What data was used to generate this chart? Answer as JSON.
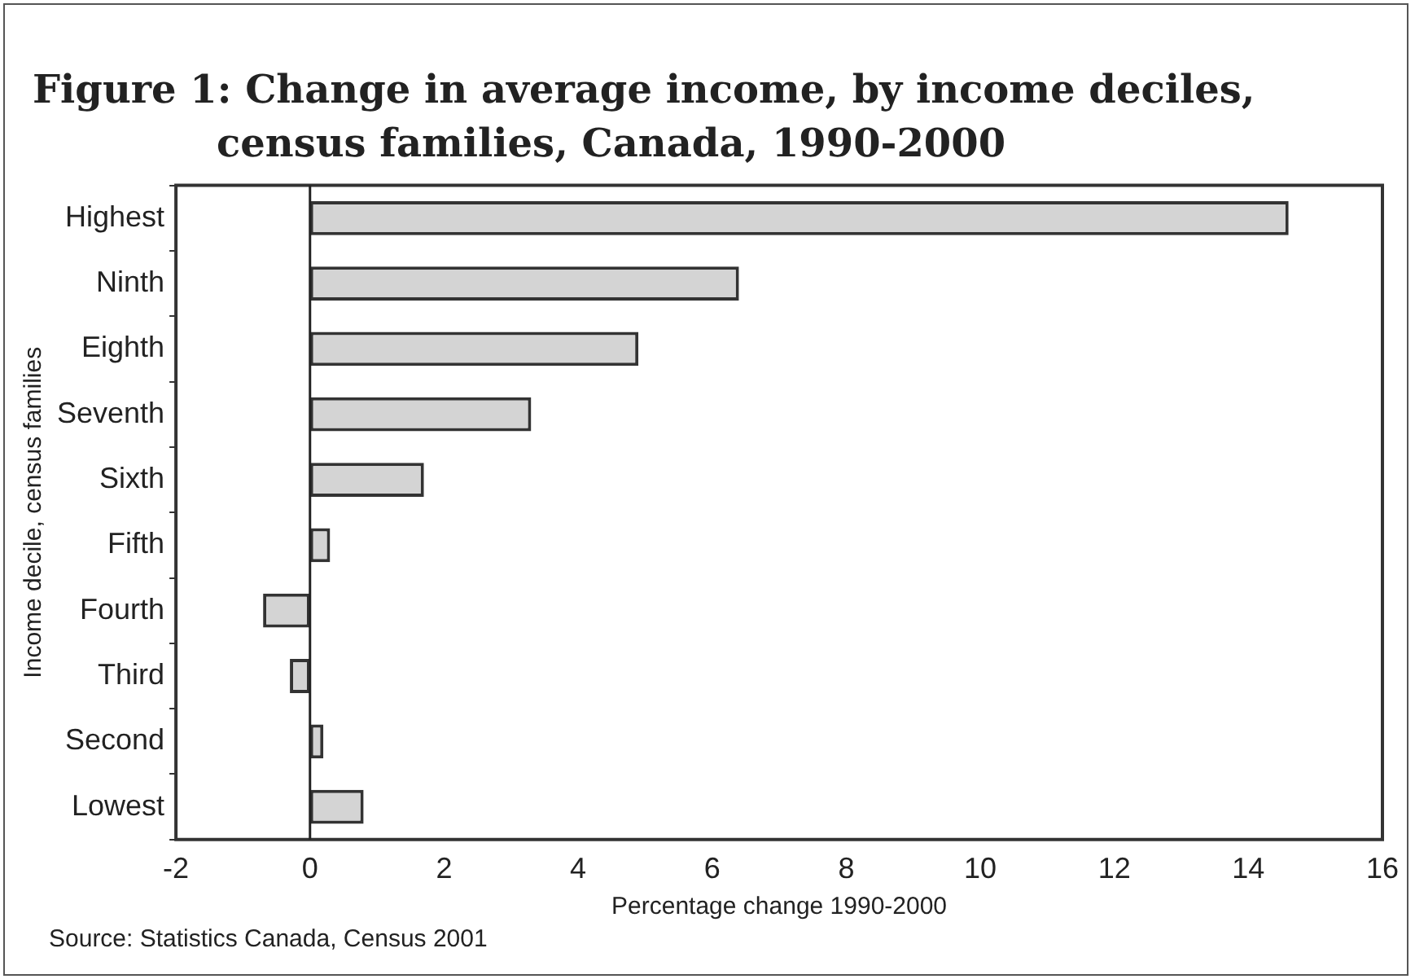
{
  "chart_data": {
    "type": "bar",
    "orientation": "horizontal",
    "title": "Figure 1: Change in average income, by income deciles, census families, Canada, 1990-2000",
    "categories": [
      "Highest",
      "Ninth",
      "Eighth",
      "Seventh",
      "Sixth",
      "Fifth",
      "Fourth",
      "Third",
      "Second",
      "Lowest"
    ],
    "values": [
      14.6,
      6.4,
      4.9,
      3.3,
      1.7,
      0.3,
      -0.7,
      -0.3,
      0.2,
      0.8
    ],
    "color": "#d4d4d4",
    "xlim": [
      -2,
      16
    ],
    "xticks": [
      -2,
      0,
      2,
      4,
      6,
      8,
      10,
      12,
      14,
      16
    ],
    "xlabel": "Percentage change 1990-2000",
    "ylabel": "Income decile, census families",
    "ref_lines": [
      {
        "axis": "x",
        "value": 0,
        "color": "#222222"
      }
    ],
    "grid": false,
    "legend": false,
    "annotations": [
      "Source: Statistics Canada, Census 2001"
    ]
  }
}
